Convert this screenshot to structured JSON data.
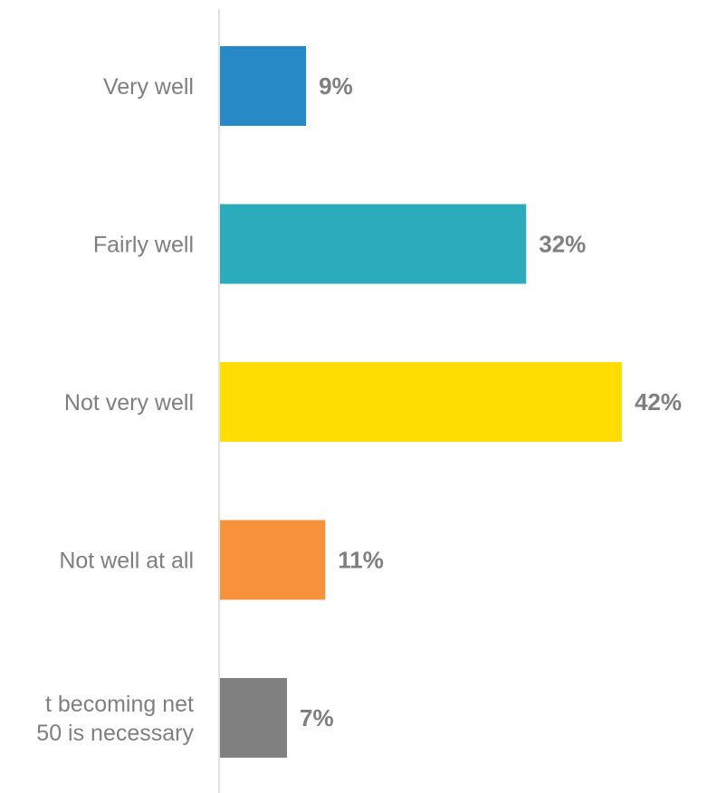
{
  "chart_data": {
    "type": "bar",
    "orientation": "horizontal",
    "categories": [
      [
        "Very well"
      ],
      [
        "Fairly well"
      ],
      [
        "Not very well"
      ],
      [
        "Not well at all"
      ],
      [
        "t becoming net",
        "50 is necessary"
      ]
    ],
    "values": [
      9,
      32,
      42,
      11,
      7
    ],
    "value_labels": [
      "9%",
      "32%",
      "42%",
      "11%",
      "7%"
    ],
    "colors": [
      "#2889c7",
      "#2babbb",
      "#ffdd00",
      "#f7923a",
      "#808080"
    ],
    "unit": "%",
    "xlim": [
      0,
      50
    ],
    "grid": false,
    "legend": "none"
  }
}
